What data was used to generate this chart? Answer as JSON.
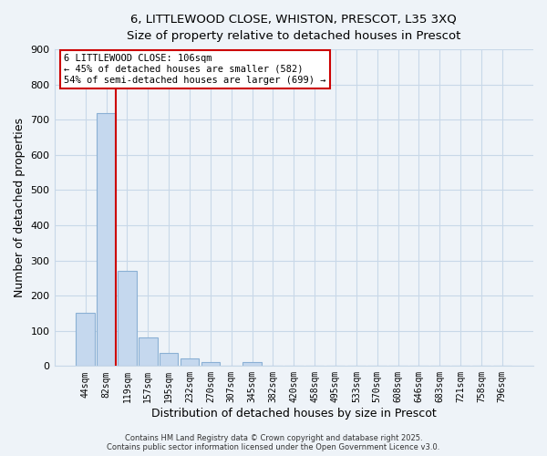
{
  "title": "6, LITTLEWOOD CLOSE, WHISTON, PRESCOT, L35 3XQ",
  "subtitle": "Size of property relative to detached houses in Prescot",
  "xlabel": "Distribution of detached houses by size in Prescot",
  "ylabel": "Number of detached properties",
  "bar_labels": [
    "44sqm",
    "82sqm",
    "119sqm",
    "157sqm",
    "195sqm",
    "232sqm",
    "270sqm",
    "307sqm",
    "345sqm",
    "382sqm",
    "420sqm",
    "458sqm",
    "495sqm",
    "533sqm",
    "570sqm",
    "608sqm",
    "646sqm",
    "683sqm",
    "721sqm",
    "758sqm",
    "796sqm"
  ],
  "bar_values": [
    150,
    718,
    270,
    82,
    37,
    22,
    10,
    0,
    10,
    0,
    0,
    0,
    0,
    0,
    0,
    0,
    0,
    0,
    0,
    0,
    0
  ],
  "bar_color": "#c5d8ee",
  "bar_edge_color": "#8ab0d4",
  "vline_color": "#cc0000",
  "ylim": [
    0,
    900
  ],
  "yticks": [
    0,
    100,
    200,
    300,
    400,
    500,
    600,
    700,
    800,
    900
  ],
  "annotation_title": "6 LITTLEWOOD CLOSE: 106sqm",
  "annotation_line1": "← 45% of detached houses are smaller (582)",
  "annotation_line2": "54% of semi-detached houses are larger (699) →",
  "annotation_box_facecolor": "#ffffff",
  "annotation_box_edgecolor": "#cc0000",
  "footer1": "Contains HM Land Registry data © Crown copyright and database right 2025.",
  "footer2": "Contains public sector information licensed under the Open Government Licence v3.0.",
  "background_color": "#eef3f8",
  "plot_bg_color": "#eef3f8",
  "grid_color": "#c8d8e8"
}
